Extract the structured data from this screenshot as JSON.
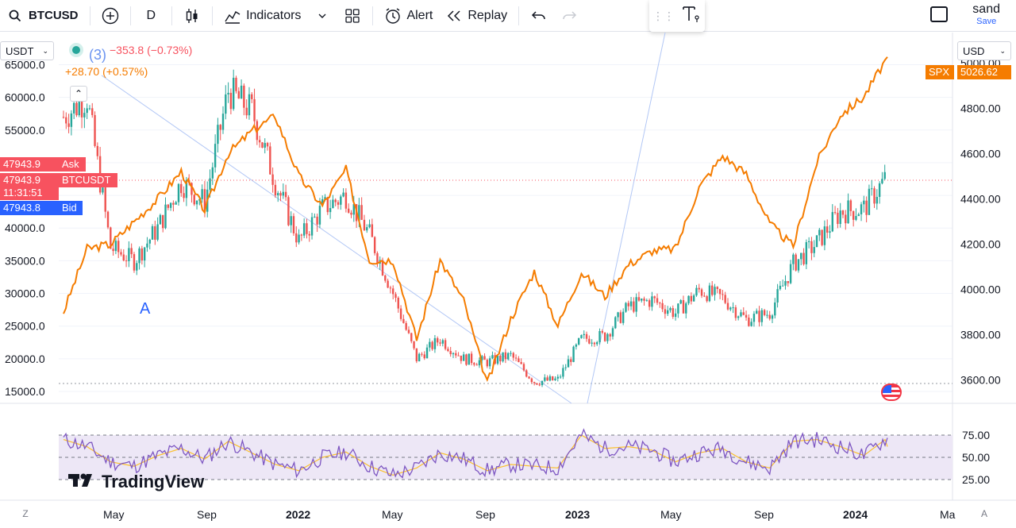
{
  "toolbar": {
    "symbol": "BTCUSD",
    "interval": "D",
    "indicators_label": "Indicators",
    "alert_label": "Alert",
    "replay_label": "Replay",
    "user_name": "sand",
    "save_label": "Save"
  },
  "left_currency": "USDT",
  "right_currency": "USD",
  "legend": {
    "wave_label": "(3)",
    "btc_change": "−353.8 (−0.73%)",
    "spx_change": "+28.70 (+0.57%)",
    "wave_a": "A"
  },
  "price_labels": {
    "ask_price": "47943.9",
    "ask_label": "Ask",
    "last_price": "47943.9",
    "last_symbol": "BTCUSDT",
    "countdown": "11:31:51",
    "bid_price": "47943.8",
    "bid_label": "Bid",
    "spx_symbol": "SPX",
    "spx_price": "5026.62"
  },
  "left_axis_ticks": [
    "65000.0",
    "60000.0",
    "55000.0",
    "50000.0",
    "45000.0",
    "40000.0",
    "35000.0",
    "30000.0",
    "25000.0",
    "20000.0",
    "15000.0"
  ],
  "right_axis_ticks": [
    "5000.00",
    "4800.00",
    "4600.00",
    "4400.00",
    "4200.00",
    "4000.00",
    "3800.00",
    "3600.00"
  ],
  "rsi_ticks": [
    "75.00",
    "50.00",
    "25.00"
  ],
  "x_axis_ticks": [
    {
      "label": "May",
      "bold": false
    },
    {
      "label": "Sep",
      "bold": false
    },
    {
      "label": "2022",
      "bold": true
    },
    {
      "label": "May",
      "bold": false
    },
    {
      "label": "Sep",
      "bold": false
    },
    {
      "label": "2023",
      "bold": true
    },
    {
      "label": "May",
      "bold": false
    },
    {
      "label": "Sep",
      "bold": false
    },
    {
      "label": "2024",
      "bold": true
    },
    {
      "label": "Ma",
      "bold": false
    }
  ],
  "corner_left": "Z",
  "corner_right": "A",
  "branding": "TradingView",
  "colors": {
    "btc_up": "#26a69a",
    "btc_down": "#ef5350",
    "spx_line": "#f57c00",
    "rsi_line": "#7e57c2",
    "rsi_ma": "#fbc02d",
    "rsi_band": "#ede7f6",
    "ask": "#f7525f",
    "bid": "#2962ff",
    "trend_line": "#b2c7f5"
  },
  "chart_data": {
    "type": "line",
    "series": [
      {
        "name": "BTCUSDT",
        "x": [
          "2021-03",
          "2021-04",
          "2021-05",
          "2021-06",
          "2021-07",
          "2021-08",
          "2021-09",
          "2021-10",
          "2021-11",
          "2021-12",
          "2022-01",
          "2022-02",
          "2022-03",
          "2022-04",
          "2022-05",
          "2022-06",
          "2022-07",
          "2022-08",
          "2022-09",
          "2022-10",
          "2022-11",
          "2022-12",
          "2023-01",
          "2023-02",
          "2023-03",
          "2023-04",
          "2023-05",
          "2023-06",
          "2023-07",
          "2023-08",
          "2023-09",
          "2023-10",
          "2023-11",
          "2023-12",
          "2024-01",
          "2024-02"
        ],
        "values": [
          57000,
          60000,
          37000,
          35000,
          40000,
          47000,
          44000,
          61000,
          58000,
          47000,
          38000,
          43000,
          45000,
          39000,
          30000,
          20000,
          23000,
          20000,
          19500,
          20500,
          16500,
          16800,
          23000,
          23500,
          28000,
          29000,
          27000,
          30500,
          29300,
          26000,
          27000,
          34500,
          37700,
          42500,
          43000,
          47943.9
        ]
      },
      {
        "name": "SPX",
        "x": [
          "2021-03",
          "2021-04",
          "2021-05",
          "2021-06",
          "2021-07",
          "2021-08",
          "2021-09",
          "2021-10",
          "2021-11",
          "2021-12",
          "2022-01",
          "2022-02",
          "2022-03",
          "2022-04",
          "2022-05",
          "2022-06",
          "2022-07",
          "2022-08",
          "2022-09",
          "2022-10",
          "2022-11",
          "2022-12",
          "2023-01",
          "2023-02",
          "2023-03",
          "2023-04",
          "2023-05",
          "2023-06",
          "2023-07",
          "2023-08",
          "2023-09",
          "2023-10",
          "2023-11",
          "2023-12",
          "2024-01",
          "2024-02"
        ],
        "values": [
          3900,
          4180,
          4200,
          4300,
          4400,
          4520,
          4350,
          4600,
          4700,
          4766,
          4500,
          4370,
          4530,
          4130,
          4130,
          3780,
          4130,
          3950,
          3585,
          3870,
          4080,
          3840,
          4076,
          3970,
          4110,
          4170,
          4180,
          4450,
          4590,
          4510,
          4290,
          4190,
          4560,
          4770,
          4850,
          5026.62
        ]
      }
    ],
    "ylim_left": [
      15000,
      67000
    ],
    "ylim_right": [
      3550,
      5050
    ]
  },
  "rsi_data": {
    "values": [
      70,
      62,
      45,
      40,
      52,
      60,
      48,
      68,
      55,
      42,
      35,
      50,
      56,
      40,
      30,
      38,
      55,
      48,
      35,
      42,
      40,
      38,
      75,
      60,
      62,
      58,
      45,
      55,
      60,
      45,
      38,
      68,
      70,
      62,
      52,
      72
    ]
  }
}
